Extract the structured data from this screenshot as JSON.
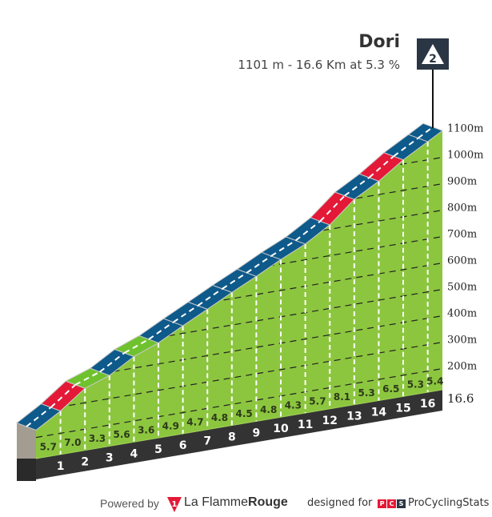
{
  "header": {
    "title": "Dori",
    "subtitle": "1101 m - 16.6 Km at 5.3 %",
    "category_badge": "2"
  },
  "chart_data": {
    "type": "area",
    "title": "Dori",
    "subtitle": "1101 m - 16.6 Km at 5.3 %",
    "distance_km": 16.6,
    "summit_elevation_m": 1101,
    "average_gradient_pct": 5.3,
    "category": "2",
    "segments": [
      {
        "km_end": 1,
        "gradient": "5.7",
        "color": "#0e5a8a"
      },
      {
        "km_end": 2,
        "gradient": "7.0",
        "color": "#e31937"
      },
      {
        "km_end": 3,
        "gradient": "3.3",
        "color": "#6fc22e"
      },
      {
        "km_end": 4,
        "gradient": "5.6",
        "color": "#0e5a8a"
      },
      {
        "km_end": 5,
        "gradient": "3.6",
        "color": "#6fc22e"
      },
      {
        "km_end": 6,
        "gradient": "4.9",
        "color": "#0e5a8a"
      },
      {
        "km_end": 7,
        "gradient": "4.7",
        "color": "#0e5a8a"
      },
      {
        "km_end": 8,
        "gradient": "4.8",
        "color": "#0e5a8a"
      },
      {
        "km_end": 9,
        "gradient": "4.5",
        "color": "#0e5a8a"
      },
      {
        "km_end": 10,
        "gradient": "4.8",
        "color": "#0e5a8a"
      },
      {
        "km_end": 11,
        "gradient": "4.3",
        "color": "#0e5a8a"
      },
      {
        "km_end": 12,
        "gradient": "5.7",
        "color": "#0e5a8a"
      },
      {
        "km_end": 13,
        "gradient": "8.1",
        "color": "#e31937"
      },
      {
        "km_end": 14,
        "gradient": "5.3",
        "color": "#0e5a8a"
      },
      {
        "km_end": 15,
        "gradient": "6.5",
        "color": "#e31937"
      },
      {
        "km_end": 16,
        "gradient": "5.3",
        "color": "#0e5a8a"
      },
      {
        "km_end": 16.6,
        "gradient": "5.4",
        "color": "#0e5a8a"
      }
    ],
    "km_labels": [
      "1",
      "2",
      "3",
      "4",
      "5",
      "6",
      "7",
      "8",
      "9",
      "10",
      "11",
      "12",
      "13",
      "14",
      "15",
      "16"
    ],
    "end_label": "16.6",
    "elevation_ticks": [
      200,
      300,
      400,
      500,
      600,
      700,
      800,
      900,
      1000,
      1100
    ],
    "elevation_tick_labels": [
      "200m",
      "300m",
      "400m",
      "500m",
      "600m",
      "700m",
      "800m",
      "900m",
      "1000m",
      "1100m"
    ],
    "grid": true,
    "colors": {
      "terrain": "#8cc63f",
      "base": "#333333",
      "side": "#a39c90"
    }
  },
  "footer": {
    "powered_by": "Powered by",
    "lfr_logo_number": "1",
    "lfr_name_1": "La Flamme",
    "lfr_name_2": "Rouge",
    "designed_for": "designed for",
    "pcs_letters": [
      "P",
      "C",
      "S"
    ],
    "pcs_name": "ProCyclingStats"
  }
}
